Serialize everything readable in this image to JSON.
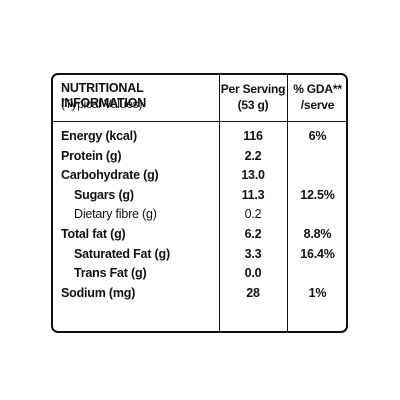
{
  "header": {
    "title": "NUTRITIONAL INFORMATION",
    "subtitle": "(Typical Values)",
    "serving_line1": "Per Serving",
    "serving_line2": "(53 g)",
    "gda_line1": "% GDA**",
    "gda_line2": "/serve"
  },
  "rows": [
    {
      "label": "Energy (kcal)",
      "serving": "116",
      "gda": "6%"
    },
    {
      "label": "Protein (g)",
      "serving": "2.2",
      "gda": ""
    },
    {
      "label": "Carbohydrate (g)",
      "serving": "13.0",
      "gda": ""
    },
    {
      "label": "Sugars (g)",
      "serving": "11.3",
      "gda": "12.5%"
    },
    {
      "label": "Dietary fibre (g)",
      "serving": "0.2",
      "gda": ""
    },
    {
      "label": "Total fat (g)",
      "serving": "6.2",
      "gda": "8.8%"
    },
    {
      "label": "Saturated Fat (g)",
      "serving": "3.3",
      "gda": "16.4%"
    },
    {
      "label": "Trans Fat (g)",
      "serving": "0.0",
      "gda": ""
    },
    {
      "label": "Sodium (mg)",
      "serving": "28",
      "gda": "1%"
    }
  ]
}
